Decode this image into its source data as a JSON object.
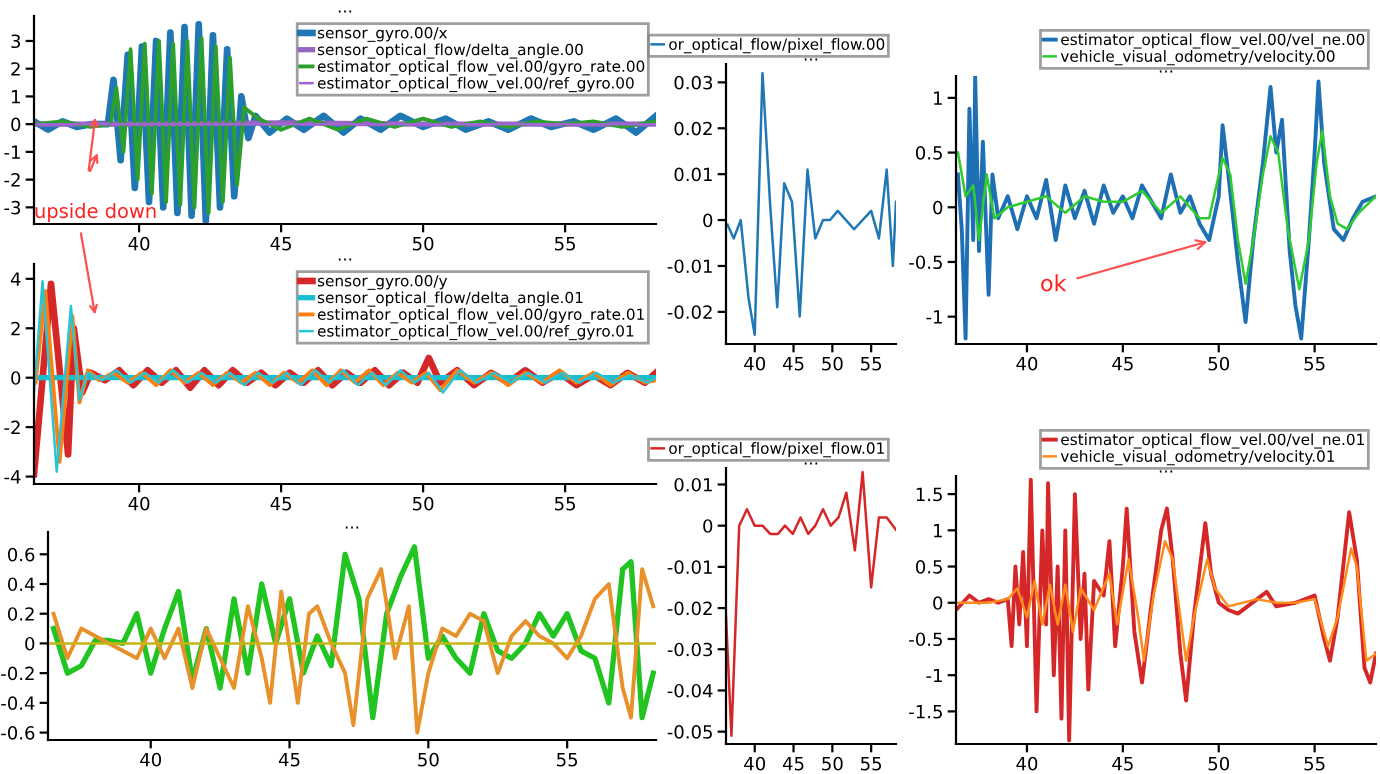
{
  "chart_data": [
    {
      "type": "line",
      "title": "...",
      "xlim": [
        36.3,
        58.2
      ],
      "xticks": [
        40,
        45,
        50,
        55
      ],
      "ylim": [
        -3.6,
        3.9
      ],
      "yticks": [
        -3,
        -2,
        -1,
        0,
        1,
        2,
        3
      ],
      "legend": "top right",
      "annotations": [
        "upside down"
      ],
      "series": [
        {
          "name": "sensor_gyro.00/x",
          "color": "#1f77b4",
          "x": [
            36.3,
            36.8,
            37.3,
            37.8,
            38.3,
            38.9,
            39.1,
            39.35,
            39.6,
            39.85,
            40.1,
            40.35,
            40.6,
            40.85,
            41.1,
            41.35,
            41.6,
            41.85,
            42.1,
            42.35,
            42.6,
            42.85,
            43.1,
            43.35,
            43.6,
            43.85,
            44.1,
            44.6,
            45.2,
            45.8,
            46.5,
            47.2,
            47.8,
            48.5,
            49.2,
            50.0,
            50.8,
            51.5,
            52.3,
            53.0,
            53.8,
            54.5,
            55.3,
            56.0,
            56.8,
            57.5,
            58.2
          ],
          "values": [
            0.1,
            -0.2,
            0.1,
            -0.1,
            0.0,
            0.0,
            1.6,
            -1.3,
            2.5,
            -2.3,
            2.8,
            -2.8,
            3.0,
            -3.0,
            3.3,
            -3.2,
            3.5,
            -3.3,
            3.6,
            -3.5,
            3.2,
            -3.0,
            2.7,
            -2.6,
            1.0,
            -0.5,
            0.3,
            -0.3,
            0.2,
            -0.2,
            0.3,
            -0.3,
            0.2,
            -0.2,
            0.3,
            -0.1,
            0.2,
            -0.2,
            0.1,
            -0.2,
            0.2,
            -0.1,
            0.1,
            -0.2,
            0.2,
            -0.3,
            0.3
          ]
        },
        {
          "name": "sensor_optical_flow/delta_angle.00",
          "color": "#9467bd",
          "x": [
            36.3,
            40.0,
            45.0,
            50.0,
            55.0,
            58.2
          ],
          "values": [
            0.0,
            0.0,
            0.05,
            0.0,
            0.0,
            0.0
          ]
        },
        {
          "name": "estimator_optical_flow_vel.00/gyro_rate.00",
          "color": "#2ca02c",
          "x": [
            36.3,
            37.3,
            38.3,
            39.0,
            39.2,
            39.45,
            39.7,
            39.95,
            40.2,
            40.45,
            40.7,
            40.95,
            41.2,
            41.45,
            41.7,
            41.95,
            42.2,
            42.45,
            42.7,
            42.95,
            43.2,
            43.45,
            43.7,
            44.2,
            45.0,
            46.0,
            47.0,
            48.0,
            49.0,
            50.0,
            51.0,
            52.0,
            53.0,
            54.0,
            55.0,
            56.0,
            57.0,
            58.2
          ],
          "values": [
            0.0,
            0.1,
            -0.1,
            0.0,
            1.3,
            -1.0,
            2.7,
            -2.0,
            2.9,
            -2.5,
            3.0,
            -2.8,
            2.9,
            -2.9,
            3.0,
            -3.0,
            3.1,
            -3.2,
            2.8,
            -2.8,
            2.4,
            -2.2,
            0.6,
            0.2,
            -0.2,
            0.2,
            -0.2,
            0.2,
            -0.1,
            0.2,
            -0.1,
            0.1,
            -0.1,
            0.1,
            0.0,
            0.1,
            -0.1,
            0.1
          ]
        },
        {
          "name": "estimator_optical_flow_vel.00/ref_gyro.00",
          "color": "#a064d8",
          "x": [
            36.3,
            42.0,
            47.0,
            52.0,
            58.2
          ],
          "values": [
            0.0,
            0.0,
            0.0,
            0.0,
            0.0
          ]
        }
      ]
    },
    {
      "type": "line",
      "title": "...",
      "xlim": [
        36.3,
        58.2
      ],
      "xticks": [
        40,
        45,
        50,
        55
      ],
      "ylim": [
        -4.3,
        4.6
      ],
      "yticks": [
        -4,
        -2,
        0,
        2,
        4
      ],
      "legend": "top right",
      "series": [
        {
          "name": "sensor_gyro.00/y",
          "color": "#d62728",
          "x": [
            36.3,
            36.9,
            37.5,
            37.7,
            38.0,
            38.3,
            38.8,
            39.3,
            39.8,
            40.3,
            40.8,
            41.3,
            41.8,
            42.3,
            42.8,
            43.3,
            43.8,
            44.3,
            44.8,
            45.3,
            45.8,
            46.3,
            46.8,
            47.3,
            47.8,
            48.3,
            48.8,
            49.3,
            49.8,
            50.2,
            50.6,
            51.2,
            51.8,
            52.4,
            53.0,
            53.6,
            54.2,
            54.8,
            55.4,
            56.0,
            56.6,
            57.2,
            57.8,
            58.2
          ],
          "values": [
            -3.9,
            3.8,
            -3.1,
            2.0,
            -0.6,
            0.2,
            -0.1,
            0.3,
            -0.3,
            0.3,
            -0.2,
            0.3,
            -0.4,
            0.3,
            -0.3,
            0.3,
            -0.2,
            0.2,
            -0.3,
            0.2,
            -0.2,
            0.3,
            -0.3,
            0.2,
            -0.2,
            0.3,
            -0.3,
            0.2,
            -0.2,
            0.8,
            -0.2,
            0.3,
            -0.3,
            0.2,
            -0.2,
            0.3,
            -0.2,
            0.2,
            -0.3,
            0.1,
            -0.3,
            0.2,
            -0.2,
            0.2
          ]
        },
        {
          "name": "sensor_optical_flow/delta_angle.01",
          "color": "#17becf",
          "x": [
            36.3,
            40.0,
            45.0,
            50.0,
            55.0,
            58.2
          ],
          "values": [
            0.0,
            0.0,
            0.0,
            0.0,
            0.0,
            0.0
          ]
        },
        {
          "name": "estimator_optical_flow_vel.00/gyro_rate.01",
          "color": "#ff7f0e",
          "x": [
            36.35,
            36.7,
            37.2,
            37.65,
            37.9,
            38.2,
            38.6,
            39.1,
            39.6,
            40.1,
            40.6,
            41.1,
            41.6,
            42.1,
            42.6,
            43.1,
            43.6,
            44.1,
            44.6,
            45.1,
            45.6,
            46.1,
            46.6,
            47.1,
            47.6,
            48.1,
            48.6,
            49.1,
            49.6,
            50.1,
            50.6,
            51.2,
            51.8,
            52.4,
            53.0,
            53.6,
            54.2,
            54.8,
            55.4,
            56.0,
            56.6,
            57.2,
            57.8,
            58.2
          ],
          "values": [
            -0.2,
            3.5,
            -3.4,
            2.5,
            -1.0,
            0.3,
            -0.1,
            0.2,
            -0.2,
            0.2,
            -0.3,
            0.3,
            -0.2,
            0.2,
            -0.3,
            0.2,
            -0.2,
            0.2,
            -0.3,
            0.2,
            -0.2,
            0.3,
            -0.3,
            0.3,
            -0.2,
            0.3,
            -0.3,
            0.2,
            -0.2,
            0.2,
            -0.5,
            0.3,
            -0.2,
            0.2,
            -0.3,
            0.2,
            -0.2,
            0.3,
            -0.2,
            0.2,
            -0.3,
            0.2,
            -0.2,
            -0.1
          ]
        },
        {
          "name": "estimator_optical_flow_vel.00/ref_gyro.01",
          "color": "#2bc4d4",
          "x": [
            36.3,
            36.6,
            37.1,
            37.6,
            37.9,
            38.2,
            38.7,
            39.2,
            39.7,
            40.2,
            40.7,
            41.2,
            41.7,
            42.2,
            42.7,
            43.2,
            43.7,
            44.2,
            44.7,
            45.2,
            45.7,
            46.2,
            46.7,
            47.2,
            47.7,
            48.2,
            48.7,
            49.2,
            49.7,
            50.2,
            50.7,
            51.3,
            51.9,
            52.5,
            53.1,
            53.7,
            54.3,
            54.9,
            55.5,
            56.1,
            56.7,
            57.3,
            57.9,
            58.2
          ],
          "values": [
            -0.6,
            3.9,
            -3.8,
            2.9,
            -0.9,
            0.2,
            -0.1,
            0.3,
            -0.2,
            0.2,
            -0.2,
            0.3,
            -0.2,
            0.2,
            -0.2,
            0.2,
            -0.3,
            0.2,
            -0.2,
            0.2,
            -0.3,
            0.3,
            -0.2,
            0.3,
            -0.3,
            0.2,
            -0.3,
            0.3,
            -0.2,
            0.2,
            -0.6,
            0.3,
            -0.2,
            0.2,
            -0.2,
            0.2,
            -0.2,
            0.2,
            -0.2,
            0.2,
            -0.2,
            0.1,
            -0.2,
            0.0
          ]
        }
      ]
    },
    {
      "type": "line",
      "title": "...",
      "xlim": [
        36.3,
        58.2
      ],
      "xticks": [
        40,
        45,
        50,
        55
      ],
      "ylim": [
        -0.65,
        0.75
      ],
      "yticks": [
        -0.6,
        -0.4,
        -0.2,
        0,
        0.2,
        0.4,
        0.6
      ],
      "series": [
        {
          "color": "#22c422",
          "x": [
            36.5,
            37.0,
            37.5,
            38.0,
            38.5,
            39.0,
            39.5,
            40.0,
            40.5,
            41.0,
            41.5,
            42.0,
            42.5,
            43.0,
            43.5,
            44.0,
            44.5,
            45.0,
            45.5,
            46.0,
            46.5,
            47.0,
            47.5,
            48.0,
            48.5,
            49.0,
            49.5,
            50.0,
            50.5,
            51.0,
            51.5,
            52.0,
            52.5,
            53.0,
            53.5,
            54.0,
            54.5,
            55.0,
            55.5,
            56.0,
            56.5,
            57.0,
            57.3,
            57.7,
            58.1
          ],
          "values": [
            0.1,
            -0.2,
            -0.15,
            0.02,
            0.02,
            0.0,
            0.2,
            -0.2,
            0.1,
            0.35,
            -0.25,
            0.1,
            -0.3,
            0.3,
            -0.2,
            0.4,
            0.0,
            0.3,
            -0.2,
            0.05,
            -0.15,
            0.6,
            0.3,
            -0.5,
            0.2,
            0.45,
            0.65,
            -0.1,
            0.05,
            -0.1,
            -0.2,
            0.2,
            -0.05,
            -0.1,
            0.0,
            0.2,
            0.05,
            0.2,
            -0.05,
            -0.1,
            -0.4,
            0.5,
            0.55,
            -0.5,
            -0.2
          ]
        },
        {
          "color": "#e8902a",
          "x": [
            36.5,
            37.0,
            37.5,
            38.5,
            39.5,
            40.0,
            40.5,
            41.0,
            41.5,
            42.0,
            42.5,
            43.0,
            43.5,
            44.0,
            44.3,
            44.7,
            45.3,
            45.7,
            46.0,
            46.5,
            47.0,
            47.3,
            47.8,
            48.3,
            48.8,
            49.3,
            49.6,
            50.0,
            50.5,
            51.0,
            51.5,
            52.0,
            52.5,
            53.0,
            53.5,
            54.0,
            54.5,
            55.0,
            55.5,
            56.0,
            56.5,
            57.0,
            57.3,
            57.7,
            58.1
          ],
          "values": [
            0.2,
            -0.1,
            0.1,
            0.0,
            -0.1,
            0.1,
            -0.1,
            0.1,
            -0.3,
            0.1,
            -0.1,
            -0.3,
            0.25,
            -0.1,
            -0.4,
            0.35,
            -0.4,
            0.2,
            0.25,
            0.0,
            -0.2,
            -0.55,
            0.3,
            0.5,
            -0.1,
            0.25,
            -0.6,
            -0.2,
            0.1,
            0.05,
            0.2,
            0.15,
            -0.2,
            0.05,
            0.15,
            0.05,
            0.0,
            -0.1,
            0.05,
            0.3,
            0.4,
            -0.3,
            -0.5,
            0.5,
            0.25
          ]
        },
        {
          "color": "#c8b414",
          "x": [
            36.3,
            58.2
          ],
          "values": [
            0.0,
            0.0
          ]
        }
      ]
    },
    {
      "type": "line",
      "title": "...",
      "xlim": [
        36.3,
        58.2
      ],
      "xticks": [
        40,
        45,
        50,
        55
      ],
      "ylim": [
        -0.027,
        0.034
      ],
      "yticks": [
        -0.02,
        -0.01,
        0,
        0.01,
        0.02,
        0.03
      ],
      "legend": "top",
      "series": [
        {
          "name": "or_optical_flow/pixel_flow.00",
          "color": "#1f77b4",
          "x": [
            36.5,
            37.3,
            38.2,
            39.2,
            40.0,
            41.0,
            42.0,
            42.9,
            43.8,
            44.8,
            45.8,
            46.8,
            47.8,
            48.8,
            49.7,
            50.7,
            52.8,
            55.0,
            56.0,
            57.0,
            57.8,
            58.2
          ],
          "values": [
            -0.001,
            -0.004,
            0,
            -0.017,
            -0.025,
            0.032,
            0.003,
            -0.019,
            0.008,
            0.004,
            -0.021,
            0.011,
            -0.004,
            0,
            0,
            0.002,
            -0.002,
            0.002,
            -0.004,
            0.011,
            -0.01,
            0.004
          ]
        }
      ]
    },
    {
      "type": "line",
      "title": "...",
      "xlim": [
        36.3,
        58.2
      ],
      "xticks": [
        40,
        45,
        50,
        55
      ],
      "ylim": [
        -0.053,
        0.014
      ],
      "yticks": [
        -0.05,
        -0.04,
        -0.03,
        -0.02,
        -0.01,
        0,
        0.01
      ],
      "legend": "top",
      "series": [
        {
          "name": "or_optical_flow/pixel_flow.01",
          "color": "#d62728",
          "x": [
            36.3,
            37.0,
            38.0,
            39.0,
            40.0,
            41.0,
            42.0,
            43.0,
            43.9,
            44.9,
            45.9,
            46.9,
            47.8,
            48.8,
            49.8,
            50.8,
            51.8,
            52.9,
            53.9,
            55.0,
            56.0,
            57.0,
            58.2
          ],
          "values": [
            -0.022,
            -0.051,
            0,
            0.004,
            0,
            0,
            -0.002,
            -0.002,
            0,
            -0.002,
            0.002,
            -0.002,
            0,
            0.004,
            0,
            0.002,
            0.008,
            -0.006,
            0.013,
            -0.015,
            0.002,
            0.002,
            -0.001
          ]
        }
      ]
    },
    {
      "type": "line",
      "title": "...",
      "xlim": [
        36.3,
        58.2
      ],
      "xticks": [
        40,
        45,
        50,
        55
      ],
      "ylim": [
        -1.25,
        1.2
      ],
      "yticks": [
        -1,
        -0.5,
        0,
        0.5,
        1
      ],
      "legend": "top",
      "annotations": [
        {
          "text": "ok",
          "x": 49.7,
          "y": -0.3
        }
      ],
      "series": [
        {
          "name": "estimator_optical_flow_vel.00/vel_ne.00",
          "color": "#1f6fb4",
          "x": [
            36.4,
            36.6,
            36.8,
            37.0,
            37.2,
            37.3,
            37.5,
            37.7,
            38.0,
            38.2,
            38.5,
            39.0,
            39.5,
            40.0,
            40.5,
            41.0,
            41.5,
            42.0,
            42.5,
            43.0,
            43.5,
            44.0,
            44.5,
            45.0,
            45.5,
            46.0,
            46.5,
            47.0,
            47.5,
            48.0,
            48.5,
            49.0,
            49.5,
            50.0,
            50.2,
            50.5,
            51.0,
            51.4,
            51.8,
            52.3,
            52.7,
            53.0,
            53.3,
            53.7,
            54.0,
            54.3,
            54.7,
            55.0,
            55.2,
            55.5,
            56.0,
            56.5,
            57.0,
            57.5,
            58.2
          ],
          "values": [
            0.3,
            -0.2,
            -1.2,
            0.9,
            -0.3,
            1.2,
            -0.4,
            0.6,
            -0.8,
            0.3,
            -0.1,
            0.1,
            -0.2,
            0.1,
            -0.1,
            0.25,
            -0.3,
            0.2,
            -0.1,
            0.15,
            -0.15,
            0.2,
            -0.05,
            0.1,
            -0.1,
            0.2,
            0.05,
            -0.1,
            0.3,
            -0.05,
            0.1,
            -0.15,
            -0.3,
            0.1,
            0.75,
            0.3,
            -0.5,
            -1.05,
            -0.3,
            0.4,
            1.1,
            0.5,
            0.8,
            -0.4,
            -0.9,
            -1.2,
            -0.3,
            0.5,
            1.15,
            0.4,
            -0.2,
            -0.3,
            -0.1,
            0.05,
            0.1
          ]
        },
        {
          "name": "vehicle_visual_odometry/velocity.00",
          "color": "#2ecc2e",
          "x": [
            36.4,
            36.8,
            37.2,
            37.5,
            37.9,
            38.3,
            39.0,
            40.0,
            41.0,
            42.0,
            43.0,
            44.0,
            45.0,
            46.0,
            47.0,
            48.0,
            49.0,
            49.5,
            50.2,
            50.6,
            51.0,
            51.4,
            51.8,
            52.3,
            52.7,
            53.1,
            53.6,
            54.2,
            54.7,
            55.1,
            55.4,
            55.8,
            56.2,
            56.7,
            57.3,
            58.2
          ],
          "values": [
            0.5,
            0.1,
            0.2,
            -0.3,
            0.3,
            -0.1,
            0,
            0.05,
            0.1,
            -0.05,
            0.1,
            0.05,
            0.05,
            0.15,
            -0.05,
            0.1,
            -0.1,
            -0.1,
            0.45,
            0.3,
            -0.3,
            -0.7,
            -0.3,
            0.3,
            0.65,
            0.5,
            -0.2,
            -0.75,
            -0.3,
            0.4,
            0.7,
            0.1,
            -0.15,
            -0.2,
            -0.05,
            0.1
          ]
        }
      ]
    },
    {
      "type": "line",
      "title": "...",
      "xlim": [
        36.3,
        58.2
      ],
      "xticks": [
        40,
        45,
        50,
        55
      ],
      "ylim": [
        -1.95,
        1.75
      ],
      "yticks": [
        -1.5,
        -1,
        -0.5,
        0,
        0.5,
        1,
        1.5
      ],
      "legend": "top",
      "series": [
        {
          "name": "estimator_optical_flow_vel.00/vel_ne.01",
          "color": "#d62728",
          "x": [
            36.3,
            37.0,
            37.5,
            38.0,
            38.5,
            39.0,
            39.2,
            39.4,
            39.6,
            39.8,
            40.0,
            40.2,
            40.5,
            40.8,
            41.0,
            41.1,
            41.4,
            41.6,
            41.8,
            42.0,
            42.2,
            42.5,
            42.8,
            43.0,
            43.2,
            43.5,
            44.0,
            44.3,
            44.6,
            45.0,
            45.2,
            45.6,
            46.0,
            46.5,
            47.0,
            47.3,
            47.6,
            48.0,
            48.3,
            48.7,
            49.3,
            49.6,
            50.0,
            50.5,
            51.0,
            52.0,
            52.5,
            53.0,
            54.0,
            55.0,
            55.5,
            55.8,
            56.2,
            56.8,
            57.2,
            57.6,
            57.9,
            58.2
          ],
          "values": [
            -0.1,
            0.1,
            0.0,
            0.05,
            0.0,
            0.05,
            -0.6,
            0.5,
            -0.3,
            0.7,
            -0.6,
            1.7,
            -1.5,
            1.0,
            -0.3,
            1.65,
            -1.0,
            0.5,
            -1.6,
            1.0,
            -1.9,
            1.5,
            -0.5,
            0.4,
            -1.2,
            0.3,
            0.1,
            0.85,
            -0.6,
            0.5,
            1.3,
            -0.4,
            -1.1,
            0.0,
            1.0,
            1.3,
            0.6,
            -0.7,
            -1.35,
            -0.2,
            1.1,
            0.4,
            0.0,
            -0.1,
            -0.15,
            0.05,
            0.15,
            -0.05,
            0.0,
            0.1,
            -0.5,
            -0.8,
            -0.2,
            1.25,
            0.6,
            -0.9,
            -1.1,
            -0.7
          ]
        },
        {
          "name": "vehicle_visual_odometry/velocity.01",
          "color": "#ff8c1a",
          "x": [
            36.3,
            38.0,
            39.0,
            39.5,
            40.0,
            40.4,
            40.8,
            41.2,
            41.6,
            42.0,
            42.4,
            42.8,
            43.5,
            44.3,
            44.7,
            45.3,
            45.8,
            46.1,
            46.6,
            47.2,
            47.6,
            48.3,
            48.7,
            49.4,
            49.8,
            50.5,
            52.0,
            53.0,
            54.0,
            55.0,
            55.7,
            56.2,
            56.9,
            57.2,
            57.7,
            58.2
          ],
          "values": [
            0,
            0,
            0.05,
            0.2,
            -0.2,
            0.3,
            -0.3,
            0.25,
            -0.3,
            0.25,
            -0.4,
            0.2,
            -0.1,
            0.4,
            -0.3,
            0.6,
            -0.2,
            -0.8,
            0.1,
            0.85,
            0.6,
            -0.8,
            -0.2,
            0.6,
            0.2,
            -0.05,
            0.05,
            0.0,
            0.0,
            0.05,
            -0.6,
            -0.2,
            0.75,
            0.5,
            -0.8,
            -0.7
          ]
        }
      ]
    }
  ]
}
